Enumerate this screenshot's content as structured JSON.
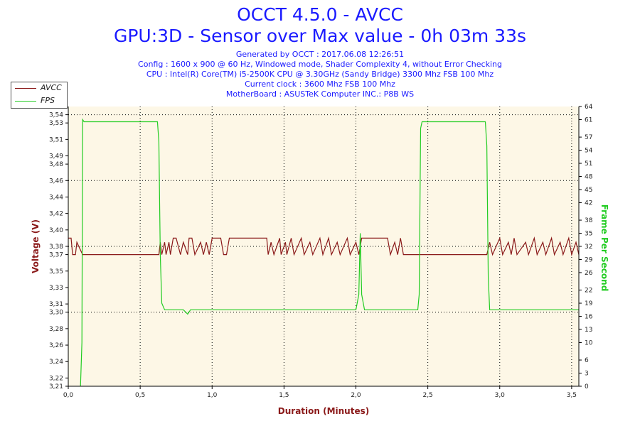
{
  "header": {
    "title": "OCCT 4.5.0 - AVCC",
    "subtitle": "GPU:3D - Sensor over Max value - 0h 03m 33s",
    "info_lines": [
      "Generated by OCCT : 2017.06.08 12:26:51",
      "Config : 1600 x 900 @ 60 Hz, Windowed mode, Shader Complexity 4, without Error Checking",
      "CPU : Intel(R) Core(TM) i5-2500K CPU @ 3.30GHz (Sandy Bridge) 3300 Mhz FSB 100 Mhz",
      "Current clock : 3600 Mhz FSB 100 Mhz",
      "MotherBoard : ASUSTeK Computer INC.: P8B WS"
    ]
  },
  "colors": {
    "title": "#1a1aff",
    "avcc": "#8b1a1a",
    "fps": "#22cc22",
    "plot_bg": "#fdf7e6",
    "axis": "#000000"
  },
  "chart_data": {
    "type": "line",
    "title": "OCCT 4.5.0 - AVCC",
    "xlabel": "Duration (Minutes)",
    "ylabel": "Voltage (V)",
    "y2label": "Frame Per Second",
    "xlim": [
      0,
      3.55
    ],
    "ylim": [
      3.21,
      3.55
    ],
    "y2lim": [
      0,
      64
    ],
    "x_ticks": [
      "0,0",
      "0,5",
      "1,0",
      "1,5",
      "2,0",
      "2,5",
      "3,0",
      "3,5"
    ],
    "x_tick_values": [
      0,
      0.5,
      1.0,
      1.5,
      2.0,
      2.5,
      3.0,
      3.5
    ],
    "y_ticks": [
      "3,21",
      "3,22",
      "3,24",
      "3,26",
      "3,28",
      "3,30",
      "3,31",
      "3,33",
      "3,35",
      "3,37",
      "3,38",
      "3,40",
      "3,42",
      "3,44",
      "3,46",
      "3,48",
      "3,49",
      "3,51",
      "3,53",
      "3,54"
    ],
    "y_tick_values": [
      3.21,
      3.22,
      3.24,
      3.26,
      3.28,
      3.3,
      3.31,
      3.33,
      3.35,
      3.37,
      3.38,
      3.4,
      3.42,
      3.44,
      3.46,
      3.48,
      3.49,
      3.51,
      3.53,
      3.54
    ],
    "y2_ticks": [
      "0",
      "3",
      "6",
      "10",
      "13",
      "16",
      "19",
      "22",
      "26",
      "29",
      "32",
      "35",
      "38",
      "42",
      "45",
      "48",
      "51",
      "54",
      "57",
      "61",
      "64"
    ],
    "y2_tick_values": [
      0,
      3,
      6,
      10,
      13,
      16,
      19,
      22,
      26,
      29,
      32,
      35,
      38,
      42,
      45,
      48,
      51,
      54,
      57,
      61,
      64
    ],
    "grid": true,
    "legend": "top-left",
    "series": [
      {
        "name": "AVCC",
        "axis": "left",
        "color": "#8b1a1a",
        "x": [
          0.0,
          0.02,
          0.03,
          0.05,
          0.06,
          0.1,
          0.11,
          0.12,
          0.13,
          0.62,
          0.63,
          0.64,
          0.65,
          0.67,
          0.68,
          0.7,
          0.71,
          0.73,
          0.75,
          0.78,
          0.8,
          0.83,
          0.84,
          0.86,
          0.88,
          0.92,
          0.94,
          0.96,
          0.98,
          1.0,
          1.02,
          1.06,
          1.08,
          1.1,
          1.12,
          1.38,
          1.39,
          1.41,
          1.43,
          1.47,
          1.48,
          1.51,
          1.52,
          1.55,
          1.57,
          1.62,
          1.64,
          1.68,
          1.7,
          1.75,
          1.77,
          1.81,
          1.83,
          1.87,
          1.89,
          1.94,
          1.96,
          2.0,
          2.02,
          2.04,
          2.06,
          2.22,
          2.24,
          2.27,
          2.29,
          2.31,
          2.33,
          2.38,
          2.4,
          2.42,
          2.44,
          2.9,
          2.91,
          2.93,
          2.95,
          3.0,
          3.02,
          3.06,
          3.08,
          3.1,
          3.12,
          3.18,
          3.2,
          3.24,
          3.26,
          3.3,
          3.32,
          3.36,
          3.38,
          3.42,
          3.44,
          3.48,
          3.5,
          3.53,
          3.55
        ],
        "y": [
          3.39,
          3.39,
          3.37,
          3.37,
          3.385,
          3.37,
          3.37,
          3.37,
          3.37,
          3.37,
          3.37,
          3.385,
          3.37,
          3.385,
          3.37,
          3.385,
          3.37,
          3.39,
          3.39,
          3.37,
          3.385,
          3.37,
          3.39,
          3.39,
          3.37,
          3.385,
          3.37,
          3.385,
          3.37,
          3.39,
          3.39,
          3.39,
          3.37,
          3.37,
          3.39,
          3.39,
          3.37,
          3.385,
          3.37,
          3.39,
          3.37,
          3.385,
          3.37,
          3.39,
          3.37,
          3.39,
          3.37,
          3.385,
          3.37,
          3.39,
          3.37,
          3.39,
          3.37,
          3.385,
          3.37,
          3.39,
          3.37,
          3.385,
          3.37,
          3.39,
          3.39,
          3.39,
          3.37,
          3.385,
          3.37,
          3.39,
          3.37,
          3.37,
          3.37,
          3.37,
          3.37,
          3.37,
          3.37,
          3.385,
          3.37,
          3.39,
          3.37,
          3.385,
          3.37,
          3.39,
          3.37,
          3.385,
          3.37,
          3.39,
          3.37,
          3.385,
          3.37,
          3.39,
          3.37,
          3.385,
          3.37,
          3.39,
          3.37,
          3.385,
          3.37
        ]
      },
      {
        "name": "FPS",
        "axis": "right",
        "color": "#22cc22",
        "x": [
          0.085,
          0.095,
          0.1,
          0.11,
          0.12,
          0.62,
          0.63,
          0.64,
          0.65,
          0.67,
          0.7,
          0.75,
          0.8,
          0.83,
          0.85,
          0.9,
          0.95,
          1.0,
          1.2,
          1.4,
          1.6,
          1.8,
          1.95,
          2.0,
          2.02,
          2.03,
          2.04,
          2.06,
          2.2,
          2.3,
          2.43,
          2.44,
          2.45,
          2.46,
          2.47,
          2.9,
          2.91,
          2.92,
          2.93,
          2.95,
          3.0,
          3.1,
          3.2,
          3.3,
          3.4,
          3.5,
          3.55
        ],
        "y": [
          0,
          10,
          61,
          60.5,
          60.5,
          60.5,
          56,
          30,
          19,
          17.5,
          17.5,
          17.5,
          17.5,
          16.5,
          17.5,
          17.5,
          17.5,
          17.5,
          17.5,
          17.5,
          17.5,
          17.5,
          17.5,
          17.5,
          21,
          35,
          21,
          17.5,
          17.5,
          17.5,
          17.5,
          21,
          59,
          60.5,
          60.5,
          60.5,
          55,
          25,
          17.5,
          17.5,
          17.5,
          17.5,
          17.5,
          17.5,
          17.5,
          17.5,
          17.5
        ]
      }
    ]
  }
}
